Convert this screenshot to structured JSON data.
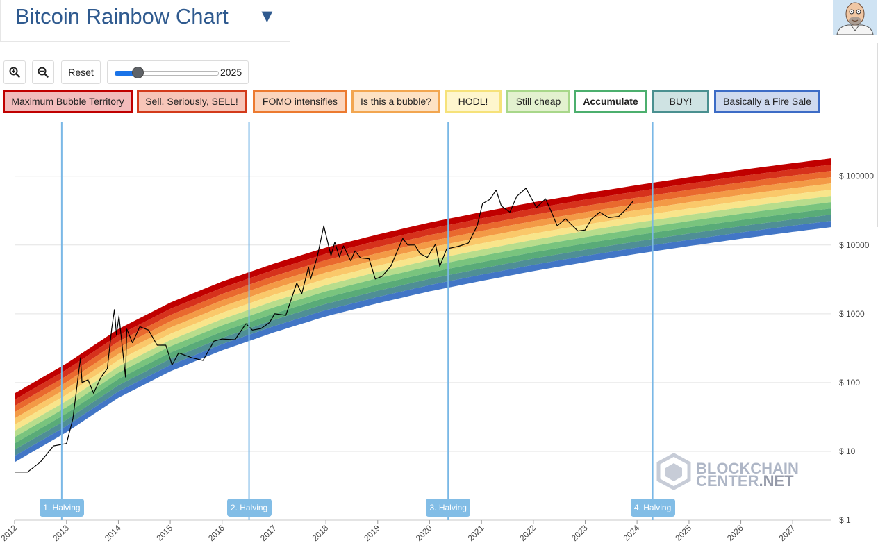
{
  "header": {
    "title": "Bitcoin Rainbow Chart",
    "dropdown_glyph": "▼"
  },
  "toolbar": {
    "zoom_in_icon": "zoom-in-icon",
    "zoom_out_icon": "zoom-out-icon",
    "reset_label": "Reset",
    "slider_year": "2025",
    "slider_level": 0.22
  },
  "legend": [
    {
      "label": "Maximum Bubble Territory",
      "fill": "#f2bcbc",
      "border": "#c00000"
    },
    {
      "label": "Sell. Seriously, SELL!",
      "fill": "#f7c5b8",
      "border": "#d33a1a"
    },
    {
      "label": "FOMO intensifies",
      "fill": "#fbd5bd",
      "border": "#ec7a30"
    },
    {
      "label": "Is this a bubble?",
      "fill": "#fde2c4",
      "border": "#f2a650"
    },
    {
      "label": "HODL!",
      "fill": "#fef6cd",
      "border": "#f6e27a"
    },
    {
      "label": "Still cheap",
      "fill": "#e3f1cf",
      "border": "#a8d78a"
    },
    {
      "label": "Accumulate",
      "fill": "#ffffff",
      "border": "#4caf6e",
      "selected": true
    },
    {
      "label": "BUY!",
      "fill": "#cfe3e3",
      "border": "#4a9090"
    },
    {
      "label": "Basically a Fire Sale",
      "fill": "#cfdaef",
      "border": "#3d6cc6"
    }
  ],
  "watermark": {
    "line1": "BLOCKCHAIN",
    "line2a": "CENTER",
    "line2b": ".NET"
  },
  "chart_data": {
    "type": "line",
    "y_scale": "log",
    "ylim": [
      1,
      700000
    ],
    "xlim": [
      "2012-01-01",
      "2027-10-01"
    ],
    "grid": true,
    "y_ticks": [
      {
        "value": 1,
        "label": "$ 1"
      },
      {
        "value": 10,
        "label": "$ 10"
      },
      {
        "value": 100,
        "label": "$ 100"
      },
      {
        "value": 1000,
        "label": "$ 1000"
      },
      {
        "value": 10000,
        "label": "$ 10000"
      },
      {
        "value": 100000,
        "label": "$ 100000"
      }
    ],
    "x_ticks": [
      "2012",
      "2013",
      "2014",
      "2015",
      "2016",
      "2017",
      "2018",
      "2019",
      "2020",
      "2021",
      "2022",
      "2023",
      "2024",
      "2025",
      "2026",
      "2027"
    ],
    "bands": {
      "colors": [
        "#c00000",
        "#d6321c",
        "#e9692e",
        "#f39a46",
        "#fac86a",
        "#f8e58b",
        "#b8dd8c",
        "#79c47e",
        "#59ab78",
        "#4f8f95",
        "#4276c6"
      ],
      "centerline": [
        {
          "x": "2012-01-01",
          "y": 22
        },
        {
          "x": "2013-01-01",
          "y": 60
        },
        {
          "x": "2014-01-01",
          "y": 190
        },
        {
          "x": "2015-01-01",
          "y": 460
        },
        {
          "x": "2016-01-01",
          "y": 930
        },
        {
          "x": "2017-01-01",
          "y": 1700
        },
        {
          "x": "2018-01-01",
          "y": 2900
        },
        {
          "x": "2019-01-01",
          "y": 4500
        },
        {
          "x": "2020-01-01",
          "y": 6700
        },
        {
          "x": "2021-01-01",
          "y": 9500
        },
        {
          "x": "2022-01-01",
          "y": 13200
        },
        {
          "x": "2023-01-01",
          "y": 17800
        },
        {
          "x": "2024-01-01",
          "y": 23500
        },
        {
          "x": "2025-01-01",
          "y": 30500
        },
        {
          "x": "2026-01-01",
          "y": 39000
        },
        {
          "x": "2027-01-01",
          "y": 49000
        },
        {
          "x": "2027-10-01",
          "y": 57500
        }
      ],
      "half_width_decades": 0.5
    },
    "series": [
      {
        "values": [
          {
            "x": "2012-01-01",
            "y": 5
          },
          {
            "x": "2012-04-01",
            "y": 5
          },
          {
            "x": "2012-07-01",
            "y": 7
          },
          {
            "x": "2012-10-01",
            "y": 12
          },
          {
            "x": "2013-01-01",
            "y": 13
          },
          {
            "x": "2013-02-15",
            "y": 30
          },
          {
            "x": "2013-04-09",
            "y": 230
          },
          {
            "x": "2013-04-20",
            "y": 100
          },
          {
            "x": "2013-06-01",
            "y": 110
          },
          {
            "x": "2013-07-10",
            "y": 70
          },
          {
            "x": "2013-09-01",
            "y": 120
          },
          {
            "x": "2013-10-15",
            "y": 160
          },
          {
            "x": "2013-11-15",
            "y": 600
          },
          {
            "x": "2013-12-04",
            "y": 1150
          },
          {
            "x": "2013-12-18",
            "y": 500
          },
          {
            "x": "2014-01-05",
            "y": 930
          },
          {
            "x": "2014-02-20",
            "y": 120
          },
          {
            "x": "2014-03-01",
            "y": 600
          },
          {
            "x": "2014-04-10",
            "y": 380
          },
          {
            "x": "2014-06-01",
            "y": 650
          },
          {
            "x": "2014-08-01",
            "y": 580
          },
          {
            "x": "2014-10-01",
            "y": 350
          },
          {
            "x": "2014-12-01",
            "y": 350
          },
          {
            "x": "2015-01-14",
            "y": 180
          },
          {
            "x": "2015-03-01",
            "y": 270
          },
          {
            "x": "2015-06-01",
            "y": 230
          },
          {
            "x": "2015-08-20",
            "y": 210
          },
          {
            "x": "2015-11-05",
            "y": 400
          },
          {
            "x": "2016-01-01",
            "y": 430
          },
          {
            "x": "2016-04-01",
            "y": 420
          },
          {
            "x": "2016-06-17",
            "y": 720
          },
          {
            "x": "2016-08-01",
            "y": 580
          },
          {
            "x": "2016-10-01",
            "y": 610
          },
          {
            "x": "2016-12-01",
            "y": 750
          },
          {
            "x": "2017-01-05",
            "y": 1000
          },
          {
            "x": "2017-03-25",
            "y": 950
          },
          {
            "x": "2017-06-10",
            "y": 2800
          },
          {
            "x": "2017-07-15",
            "y": 1950
          },
          {
            "x": "2017-09-01",
            "y": 4800
          },
          {
            "x": "2017-09-15",
            "y": 3200
          },
          {
            "x": "2017-11-01",
            "y": 6700
          },
          {
            "x": "2017-12-17",
            "y": 19000
          },
          {
            "x": "2018-02-06",
            "y": 7000
          },
          {
            "x": "2018-03-05",
            "y": 11000
          },
          {
            "x": "2018-04-06",
            "y": 6700
          },
          {
            "x": "2018-05-05",
            "y": 9700
          },
          {
            "x": "2018-06-25",
            "y": 5900
          },
          {
            "x": "2018-07-25",
            "y": 8200
          },
          {
            "x": "2018-09-01",
            "y": 6500
          },
          {
            "x": "2018-11-01",
            "y": 6300
          },
          {
            "x": "2018-12-15",
            "y": 3200
          },
          {
            "x": "2019-02-01",
            "y": 3500
          },
          {
            "x": "2019-04-05",
            "y": 5000
          },
          {
            "x": "2019-06-26",
            "y": 12500
          },
          {
            "x": "2019-08-01",
            "y": 10000
          },
          {
            "x": "2019-09-20",
            "y": 10000
          },
          {
            "x": "2019-10-25",
            "y": 7500
          },
          {
            "x": "2019-12-17",
            "y": 6600
          },
          {
            "x": "2020-02-12",
            "y": 10300
          },
          {
            "x": "2020-03-13",
            "y": 4900
          },
          {
            "x": "2020-05-01",
            "y": 8800
          },
          {
            "x": "2020-07-25",
            "y": 9600
          },
          {
            "x": "2020-10-01",
            "y": 10700
          },
          {
            "x": "2020-12-01",
            "y": 19000
          },
          {
            "x": "2021-01-08",
            "y": 40000
          },
          {
            "x": "2021-03-01",
            "y": 46000
          },
          {
            "x": "2021-04-14",
            "y": 63000
          },
          {
            "x": "2021-05-20",
            "y": 37000
          },
          {
            "x": "2021-07-20",
            "y": 30000
          },
          {
            "x": "2021-09-06",
            "y": 51000
          },
          {
            "x": "2021-11-10",
            "y": 67000
          },
          {
            "x": "2022-01-22",
            "y": 35000
          },
          {
            "x": "2022-03-28",
            "y": 47000
          },
          {
            "x": "2022-05-12",
            "y": 29000
          },
          {
            "x": "2022-06-18",
            "y": 19000
          },
          {
            "x": "2022-08-15",
            "y": 24000
          },
          {
            "x": "2022-11-10",
            "y": 16000
          },
          {
            "x": "2022-12-31",
            "y": 16500
          },
          {
            "x": "2023-02-15",
            "y": 24000
          },
          {
            "x": "2023-04-14",
            "y": 30000
          },
          {
            "x": "2023-06-15",
            "y": 25000
          },
          {
            "x": "2023-08-25",
            "y": 26000
          },
          {
            "x": "2023-10-25",
            "y": 34500
          },
          {
            "x": "2023-12-05",
            "y": 43500
          }
        ]
      }
    ],
    "halvings": [
      {
        "label": "1. Halving",
        "x": "2012-11-28"
      },
      {
        "label": "2. Halving",
        "x": "2016-07-09"
      },
      {
        "label": "3. Halving",
        "x": "2020-05-11"
      },
      {
        "label": "4. Halving",
        "x": "2024-04-20"
      }
    ]
  }
}
